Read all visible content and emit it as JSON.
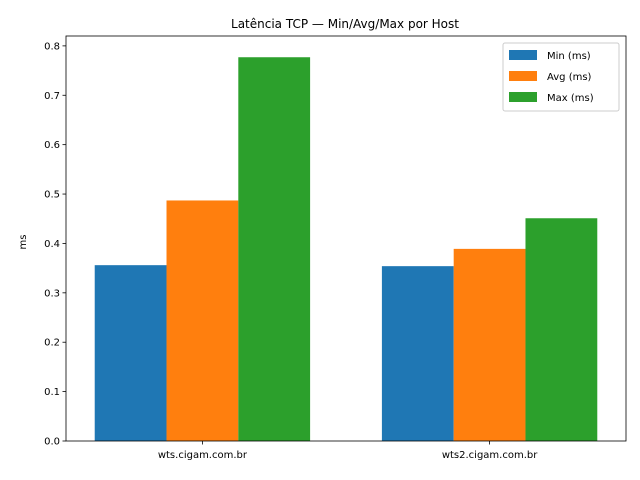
{
  "chart_data": {
    "type": "bar",
    "title": "Latência TCP — Min/Avg/Max por Host",
    "xlabel": "",
    "ylabel": "ms",
    "ylim": [
      0,
      0.82
    ],
    "yticks": [
      0.0,
      0.1,
      0.2,
      0.3,
      0.4,
      0.5,
      0.6,
      0.7,
      0.8
    ],
    "yticklabels": [
      "0.0",
      "0.1",
      "0.2",
      "0.3",
      "0.4",
      "0.5",
      "0.6",
      "0.7",
      "0.8"
    ],
    "grid": false,
    "legend_position": "top-right",
    "categories": [
      "wts.cigam.com.br",
      "wts2.cigam.com.br"
    ],
    "series": [
      {
        "name": "Min (ms)",
        "color": "#1f77b4",
        "values": [
          0.356,
          0.354
        ]
      },
      {
        "name": "Avg (ms)",
        "color": "#ff7f0e",
        "values": [
          0.487,
          0.389
        ]
      },
      {
        "name": "Max (ms)",
        "color": "#2ca02c",
        "values": [
          0.777,
          0.451
        ]
      }
    ]
  }
}
